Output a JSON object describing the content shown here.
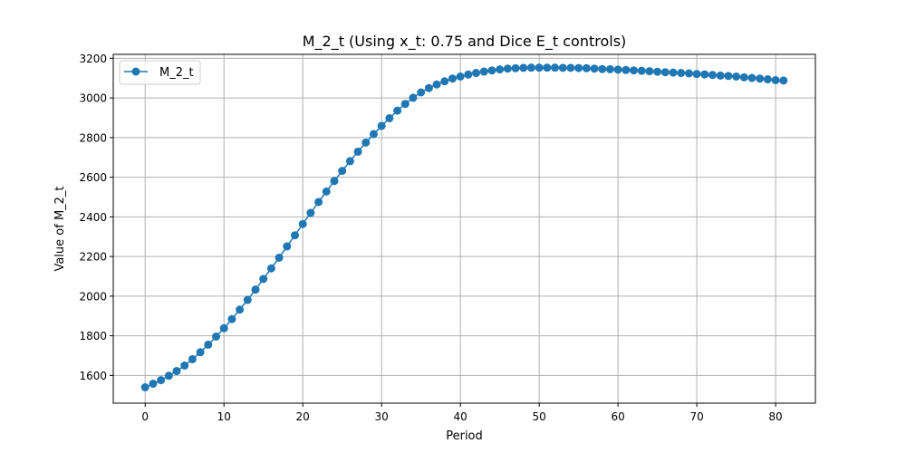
{
  "chart_data": {
    "type": "line",
    "title": "M_2_t (Using x_t: 0.75 and Dice E_t controls)",
    "xlabel": "Period",
    "ylabel": "Value of M_2_t",
    "xlim": [
      -4.05,
      85.05
    ],
    "ylim": [
      1460,
      3220
    ],
    "xticks": [
      0,
      10,
      20,
      30,
      40,
      50,
      60,
      70,
      80
    ],
    "yticks": [
      1600,
      1800,
      2000,
      2200,
      2400,
      2600,
      2800,
      3000,
      3200
    ],
    "grid": true,
    "legend_position": "upper-left",
    "series": [
      {
        "name": "M_2_t",
        "color": "#1f77b4",
        "marker": "circle",
        "x": [
          0,
          1,
          2,
          3,
          4,
          5,
          6,
          7,
          8,
          9,
          10,
          11,
          12,
          13,
          14,
          15,
          16,
          17,
          18,
          19,
          20,
          21,
          22,
          23,
          24,
          25,
          26,
          27,
          28,
          29,
          30,
          31,
          32,
          33,
          34,
          35,
          36,
          37,
          38,
          39,
          40,
          41,
          42,
          43,
          44,
          45,
          46,
          47,
          48,
          49,
          50,
          51,
          52,
          53,
          54,
          55,
          56,
          57,
          58,
          59,
          60,
          61,
          62,
          63,
          64,
          65,
          66,
          67,
          68,
          69,
          70,
          71,
          72,
          73,
          74,
          75,
          76,
          77,
          78,
          79,
          80,
          81
        ],
        "values": [
          1540,
          1558,
          1576,
          1598,
          1622,
          1650,
          1682,
          1717,
          1755,
          1796,
          1838,
          1884,
          1932,
          1981,
          2033,
          2087,
          2140,
          2194,
          2251,
          2307,
          2364,
          2420,
          2475,
          2528,
          2581,
          2632,
          2681,
          2729,
          2775,
          2818,
          2859,
          2898,
          2936,
          2970,
          3001,
          3028,
          3050,
          3068,
          3084,
          3098,
          3108,
          3118,
          3126,
          3133,
          3139,
          3144,
          3148,
          3150,
          3152,
          3153,
          3153,
          3153,
          3153,
          3152,
          3152,
          3151,
          3150,
          3148,
          3146,
          3145,
          3143,
          3141,
          3139,
          3137,
          3135,
          3132,
          3130,
          3128,
          3126,
          3124,
          3121,
          3119,
          3116,
          3113,
          3111,
          3108,
          3104,
          3101,
          3098,
          3094,
          3090,
          3088
        ]
      }
    ]
  }
}
